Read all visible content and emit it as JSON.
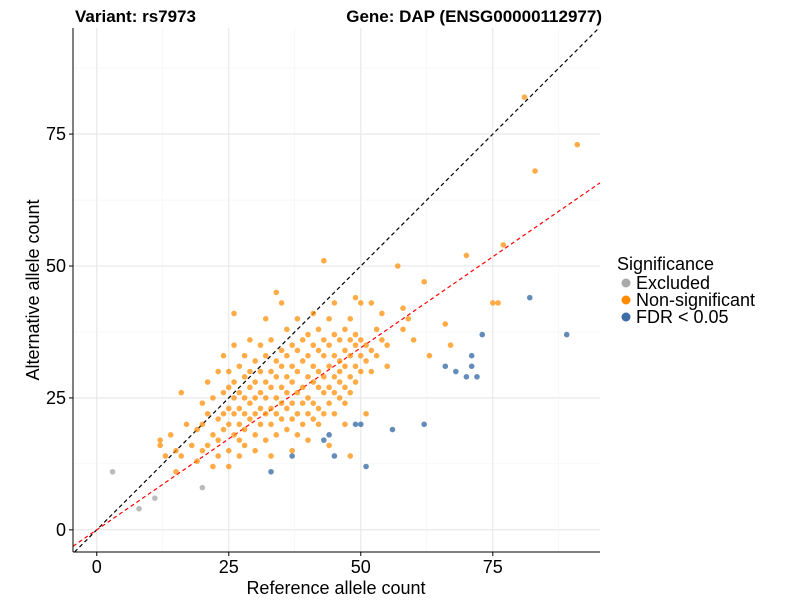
{
  "chart_data": {
    "type": "scatter",
    "title_left": "Variant: rs7973",
    "title_right": "Gene: DAP (ENSG00000112977)",
    "xlabel": "Reference allele count",
    "ylabel": "Alternative allele count",
    "xlim": [
      -4.5,
      95.3
    ],
    "ylim": [
      -4.2,
      95.1
    ],
    "xticks": [
      0,
      25,
      50,
      75
    ],
    "yticks": [
      0,
      25,
      50,
      75
    ],
    "xtick_labels": [
      "0",
      "25",
      "50",
      "75"
    ],
    "ytick_labels": [
      "0",
      "25",
      "50",
      "75"
    ],
    "grid": true,
    "legend": {
      "title": "Significance",
      "placement": "right",
      "items": [
        {
          "label": "Excluded",
          "color": "#aaaaaa"
        },
        {
          "label": "Non-significant",
          "color": "#ff8c00"
        },
        {
          "label": "FDR < 0.05",
          "color": "#3d6fa6"
        }
      ]
    },
    "reference_lines": [
      {
        "name": "identity",
        "slope": 1.0,
        "intercept": 0,
        "color": "#000000",
        "dash": true
      },
      {
        "name": "fit",
        "slope": 0.69,
        "intercept": 0,
        "color": "#ff0000",
        "dash": true
      }
    ],
    "series": [
      {
        "name": "Excluded",
        "color": "#aaaaaa",
        "points": [
          [
            3,
            11
          ],
          [
            8,
            4
          ],
          [
            11,
            6
          ],
          [
            20,
            8
          ]
        ]
      },
      {
        "name": "FDR < 0.05",
        "color": "#3d6fa6",
        "points": [
          [
            33,
            11
          ],
          [
            37,
            14
          ],
          [
            43,
            17
          ],
          [
            44,
            18
          ],
          [
            45,
            14
          ],
          [
            49,
            20
          ],
          [
            50,
            20
          ],
          [
            51,
            12
          ],
          [
            56,
            19
          ],
          [
            62,
            20
          ],
          [
            66,
            31
          ],
          [
            68,
            30
          ],
          [
            70,
            29
          ],
          [
            71,
            31
          ],
          [
            71,
            33
          ],
          [
            72,
            29
          ],
          [
            73,
            37
          ],
          [
            82,
            44
          ],
          [
            89,
            37
          ]
        ]
      },
      {
        "name": "Non-significant",
        "color": "#ff8c00",
        "points": [
          [
            12,
            16
          ],
          [
            12,
            17
          ],
          [
            13,
            14
          ],
          [
            14,
            18
          ],
          [
            15,
            11
          ],
          [
            15,
            15
          ],
          [
            16,
            26
          ],
          [
            16,
            14
          ],
          [
            17,
            20
          ],
          [
            18,
            16
          ],
          [
            19,
            13
          ],
          [
            19,
            19
          ],
          [
            20,
            20
          ],
          [
            20,
            24
          ],
          [
            20,
            15
          ],
          [
            21,
            16
          ],
          [
            21,
            28
          ],
          [
            21,
            22
          ],
          [
            22,
            18
          ],
          [
            22,
            25
          ],
          [
            22,
            12
          ],
          [
            23,
            30
          ],
          [
            23,
            21
          ],
          [
            23,
            17
          ],
          [
            23,
            14
          ],
          [
            24,
            19
          ],
          [
            24,
            22
          ],
          [
            24,
            26
          ],
          [
            24,
            33
          ],
          [
            25,
            15
          ],
          [
            25,
            20
          ],
          [
            25,
            23
          ],
          [
            25,
            27
          ],
          [
            25,
            30
          ],
          [
            25,
            12
          ],
          [
            26,
            18
          ],
          [
            26,
            22
          ],
          [
            26,
            25
          ],
          [
            26,
            28
          ],
          [
            26,
            41
          ],
          [
            26,
            35
          ],
          [
            27,
            17
          ],
          [
            27,
            20
          ],
          [
            27,
            23
          ],
          [
            27,
            26
          ],
          [
            27,
            31
          ],
          [
            27,
            14
          ],
          [
            28,
            19
          ],
          [
            28,
            22
          ],
          [
            28,
            25
          ],
          [
            28,
            29
          ],
          [
            28,
            33
          ],
          [
            28,
            16
          ],
          [
            29,
            21
          ],
          [
            29,
            24
          ],
          [
            29,
            27
          ],
          [
            29,
            30
          ],
          [
            29,
            36
          ],
          [
            30,
            18
          ],
          [
            30,
            22
          ],
          [
            30,
            25
          ],
          [
            30,
            28
          ],
          [
            30,
            32
          ],
          [
            30,
            15
          ],
          [
            31,
            20
          ],
          [
            31,
            23
          ],
          [
            31,
            26
          ],
          [
            31,
            30
          ],
          [
            31,
            35
          ],
          [
            32,
            17
          ],
          [
            32,
            22
          ],
          [
            32,
            25
          ],
          [
            32,
            28
          ],
          [
            32,
            33
          ],
          [
            32,
            40
          ],
          [
            33,
            20
          ],
          [
            33,
            23
          ],
          [
            33,
            27
          ],
          [
            33,
            30
          ],
          [
            33,
            36
          ],
          [
            33,
            14
          ],
          [
            34,
            22
          ],
          [
            34,
            25
          ],
          [
            34,
            29
          ],
          [
            34,
            32
          ],
          [
            34,
            45
          ],
          [
            34,
            18
          ],
          [
            35,
            21
          ],
          [
            35,
            24
          ],
          [
            35,
            27
          ],
          [
            35,
            31
          ],
          [
            35,
            34
          ],
          [
            35,
            43
          ],
          [
            36,
            19
          ],
          [
            36,
            23
          ],
          [
            36,
            26
          ],
          [
            36,
            29
          ],
          [
            36,
            33
          ],
          [
            36,
            38
          ],
          [
            37,
            21
          ],
          [
            37,
            24
          ],
          [
            37,
            28
          ],
          [
            37,
            31
          ],
          [
            37,
            35
          ],
          [
            37,
            15
          ],
          [
            38,
            18
          ],
          [
            38,
            22
          ],
          [
            38,
            26
          ],
          [
            38,
            30
          ],
          [
            38,
            34
          ],
          [
            38,
            40
          ],
          [
            39,
            20
          ],
          [
            39,
            24
          ],
          [
            39,
            27
          ],
          [
            39,
            32
          ],
          [
            39,
            36
          ],
          [
            40,
            22
          ],
          [
            40,
            25
          ],
          [
            40,
            29
          ],
          [
            40,
            33
          ],
          [
            40,
            37
          ],
          [
            40,
            17
          ],
          [
            41,
            21
          ],
          [
            41,
            24
          ],
          [
            41,
            28
          ],
          [
            41,
            31
          ],
          [
            41,
            35
          ],
          [
            41,
            41
          ],
          [
            42,
            20
          ],
          [
            42,
            23
          ],
          [
            42,
            27
          ],
          [
            42,
            30
          ],
          [
            42,
            34
          ],
          [
            42,
            38
          ],
          [
            43,
            22
          ],
          [
            43,
            26
          ],
          [
            43,
            29
          ],
          [
            43,
            33
          ],
          [
            43,
            36
          ],
          [
            43,
            51
          ],
          [
            44,
            24
          ],
          [
            44,
            27
          ],
          [
            44,
            31
          ],
          [
            44,
            35
          ],
          [
            44,
            40
          ],
          [
            44,
            16
          ],
          [
            45,
            22
          ],
          [
            45,
            26
          ],
          [
            45,
            29
          ],
          [
            45,
            33
          ],
          [
            45,
            37
          ],
          [
            45,
            43
          ],
          [
            46,
            25
          ],
          [
            46,
            28
          ],
          [
            46,
            32
          ],
          [
            46,
            36
          ],
          [
            46,
            30
          ],
          [
            47,
            24
          ],
          [
            47,
            27
          ],
          [
            47,
            31
          ],
          [
            47,
            34
          ],
          [
            47,
            38
          ],
          [
            47,
            20
          ],
          [
            48,
            26
          ],
          [
            48,
            29
          ],
          [
            48,
            33
          ],
          [
            48,
            36
          ],
          [
            48,
            40
          ],
          [
            48,
            14
          ],
          [
            49,
            28
          ],
          [
            49,
            31
          ],
          [
            49,
            35
          ],
          [
            49,
            37
          ],
          [
            49,
            44
          ],
          [
            50,
            30
          ],
          [
            50,
            33
          ],
          [
            50,
            36
          ],
          [
            50,
            43
          ],
          [
            51,
            32
          ],
          [
            51,
            35
          ],
          [
            51,
            22
          ],
          [
            52,
            34
          ],
          [
            52,
            43
          ],
          [
            52,
            30
          ],
          [
            53,
            33
          ],
          [
            53,
            38
          ],
          [
            54,
            36
          ],
          [
            54,
            41
          ],
          [
            55,
            35
          ],
          [
            55,
            31
          ],
          [
            57,
            50
          ],
          [
            58,
            38
          ],
          [
            58,
            42
          ],
          [
            59,
            40
          ],
          [
            60,
            36
          ],
          [
            62,
            47
          ],
          [
            63,
            33
          ],
          [
            66,
            39
          ],
          [
            67,
            35
          ],
          [
            70,
            52
          ],
          [
            75,
            43
          ],
          [
            76,
            43
          ],
          [
            77,
            54
          ],
          [
            81,
            82
          ],
          [
            83,
            68
          ],
          [
            91,
            73
          ]
        ]
      }
    ]
  }
}
